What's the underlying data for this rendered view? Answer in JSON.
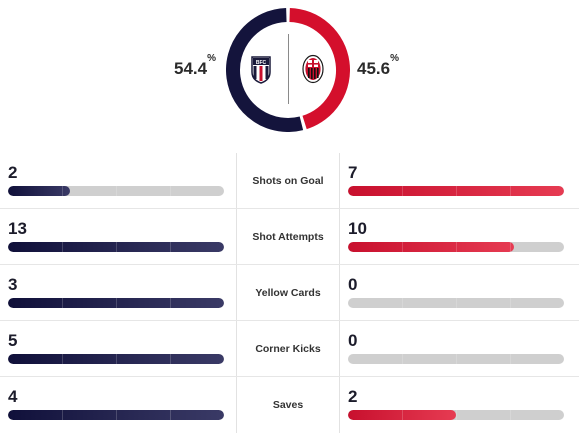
{
  "possession": {
    "home_pct": "54.4",
    "away_pct": "45.6",
    "pct_symbol": "%",
    "home_value": 54.4,
    "away_value": 45.6
  },
  "teams": {
    "home": {
      "color": "#14143c",
      "crest_icon": "bologna-crest-icon"
    },
    "away": {
      "color": "#d40f2c",
      "crest_icon": "ac-milan-crest-icon"
    }
  },
  "stats": [
    {
      "label": "Shots on Goal",
      "home": "2",
      "away": "7",
      "home_fill": 0.286,
      "away_fill": 1.0
    },
    {
      "label": "Shot Attempts",
      "home": "13",
      "away": "10",
      "home_fill": 1.0,
      "away_fill": 0.77
    },
    {
      "label": "Yellow Cards",
      "home": "3",
      "away": "0",
      "home_fill": 1.0,
      "away_fill": 0.0
    },
    {
      "label": "Corner Kicks",
      "home": "5",
      "away": "0",
      "home_fill": 1.0,
      "away_fill": 0.0
    },
    {
      "label": "Saves",
      "home": "4",
      "away": "2",
      "home_fill": 1.0,
      "away_fill": 0.5
    }
  ]
}
